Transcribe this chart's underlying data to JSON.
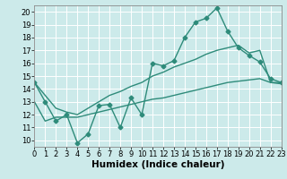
{
  "series": [
    {
      "x": [
        0,
        1,
        2,
        3,
        4,
        5,
        6,
        7,
        8,
        9,
        10,
        11,
        12,
        13,
        14,
        15,
        16,
        17,
        18,
        19,
        20,
        21,
        22,
        23
      ],
      "y": [
        14.5,
        13.0,
        11.5,
        12.0,
        9.8,
        10.5,
        12.7,
        12.8,
        11.0,
        13.3,
        12.0,
        16.0,
        15.8,
        16.2,
        18.0,
        19.2,
        19.5,
        20.3,
        18.5,
        17.2,
        16.6,
        16.1,
        14.8,
        14.5
      ],
      "color": "#2e8b7a",
      "marker": "D",
      "markersize": 2.5,
      "linewidth": 1.0
    },
    {
      "x": [
        0,
        1,
        2,
        3,
        4,
        5,
        6,
        7,
        8,
        9,
        10,
        11,
        12,
        13,
        14,
        15,
        16,
        17,
        18,
        19,
        20,
        21,
        22,
        23
      ],
      "y": [
        14.5,
        13.5,
        12.5,
        12.2,
        12.0,
        12.5,
        13.0,
        13.5,
        13.8,
        14.2,
        14.5,
        15.0,
        15.3,
        15.7,
        16.0,
        16.3,
        16.7,
        17.0,
        17.2,
        17.4,
        16.8,
        17.0,
        14.5,
        14.5
      ],
      "color": "#2e8b7a",
      "marker": null,
      "markersize": 0,
      "linewidth": 1.0
    },
    {
      "x": [
        0,
        1,
        2,
        3,
        4,
        5,
        6,
        7,
        8,
        9,
        10,
        11,
        12,
        13,
        14,
        15,
        16,
        17,
        18,
        19,
        20,
        21,
        22,
        23
      ],
      "y": [
        13.0,
        11.5,
        11.8,
        11.8,
        11.8,
        12.0,
        12.2,
        12.4,
        12.6,
        12.8,
        13.0,
        13.2,
        13.3,
        13.5,
        13.7,
        13.9,
        14.1,
        14.3,
        14.5,
        14.6,
        14.7,
        14.8,
        14.5,
        14.4
      ],
      "color": "#2e8b7a",
      "marker": null,
      "markersize": 0,
      "linewidth": 1.0
    }
  ],
  "xlim": [
    0,
    23
  ],
  "ylim": [
    9.5,
    20.5
  ],
  "yticks": [
    10,
    11,
    12,
    13,
    14,
    15,
    16,
    17,
    18,
    19,
    20
  ],
  "xticks": [
    0,
    1,
    2,
    3,
    4,
    5,
    6,
    7,
    8,
    9,
    10,
    11,
    12,
    13,
    14,
    15,
    16,
    17,
    18,
    19,
    20,
    21,
    22,
    23
  ],
  "xlabel": "Humidex (Indice chaleur)",
  "bg_color": "#cceaea",
  "grid_color": "#ffffff",
  "tick_fontsize": 6,
  "label_fontsize": 7.5
}
